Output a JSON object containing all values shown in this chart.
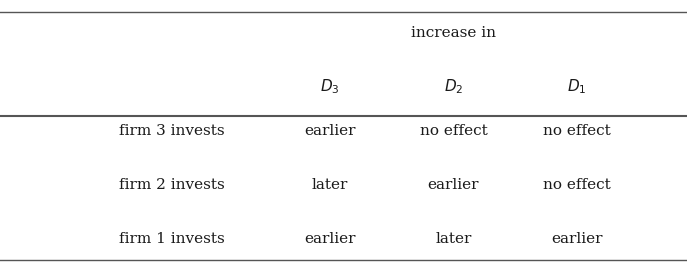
{
  "title_text": "increase in",
  "col_headers": [
    "$D_3$",
    "$D_2$",
    "$D_1$"
  ],
  "row_labels": [
    "firm 3 invests",
    "firm 2 invests",
    "firm 1 invests"
  ],
  "cell_data": [
    [
      "earlier",
      "no effect",
      "no effect"
    ],
    [
      "later",
      "earlier",
      "no effect"
    ],
    [
      "earlier",
      "later",
      "earlier"
    ]
  ],
  "bg_color": "#f2f2f2",
  "text_color": "#1a1a1a",
  "line_color": "#555555",
  "font_size": 11,
  "header_font_size": 11,
  "title_font_size": 11
}
